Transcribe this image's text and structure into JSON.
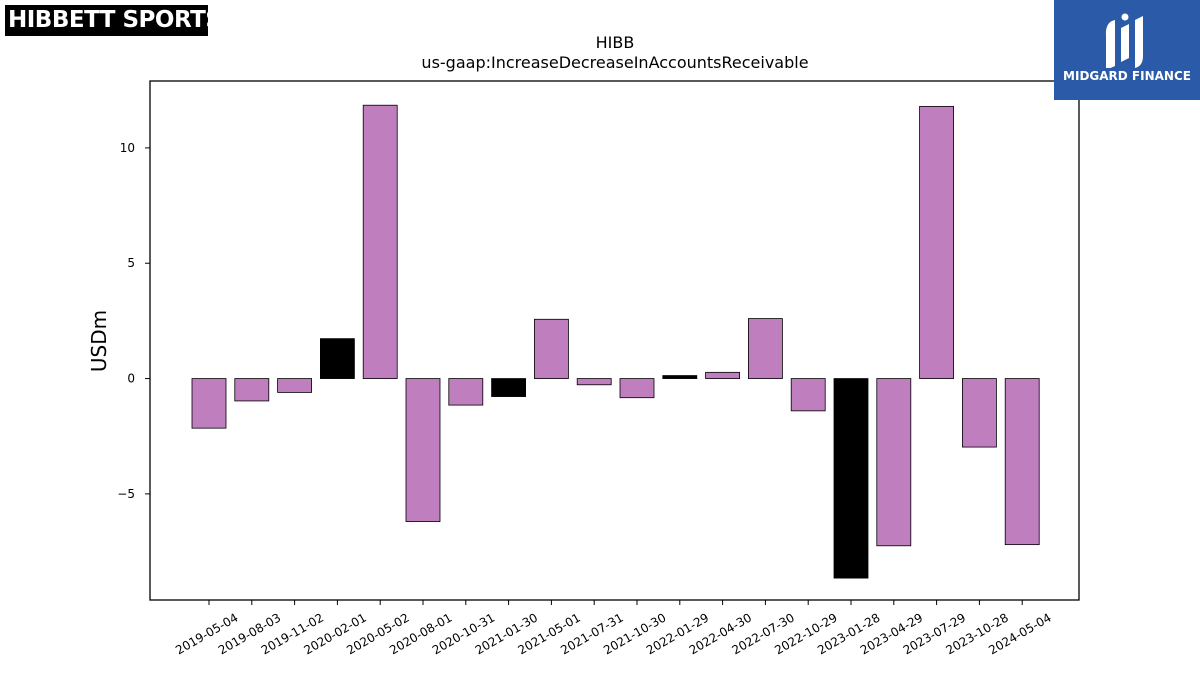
{
  "logos": {
    "left_text": "HIBBETT SPORTS",
    "left_mark": "®",
    "right_text": "MIDGARD FINANCE"
  },
  "colors": {
    "bar_default": "#bf7fbf",
    "bar_highlight": "#000000",
    "edge": "#000000",
    "right_logo_bg": "#2b5aa8"
  },
  "chart_data": {
    "type": "bar",
    "title": "HIBB",
    "subtitle": "us-gaap:IncreaseDecreaseInAccountsReceivable",
    "xlabel": "",
    "ylabel": "USDm",
    "ylim": [
      -9.6,
      12.9
    ],
    "yticks": [
      -5,
      0,
      5,
      10
    ],
    "ytick_labels": [
      "−5",
      "0",
      "5",
      "10"
    ],
    "grid": false,
    "legend": "none",
    "categories": [
      "2019-05-04",
      "2019-08-03",
      "2019-11-02",
      "2020-02-01",
      "2020-05-02",
      "2020-08-01",
      "2020-10-31",
      "2021-01-30",
      "2021-05-01",
      "2021-07-31",
      "2021-10-30",
      "2022-01-29",
      "2022-04-30",
      "2022-07-30",
      "2022-10-29",
      "2023-01-28",
      "2023-04-29",
      "2023-07-29",
      "2023-10-28",
      "2024-05-04"
    ],
    "values": [
      -2.15,
      -0.97,
      -0.6,
      1.73,
      11.85,
      -6.2,
      -1.15,
      -0.78,
      2.57,
      -0.27,
      -0.83,
      0.13,
      0.27,
      2.6,
      -1.4,
      -8.65,
      -7.25,
      11.8,
      -2.97,
      -7.2
    ],
    "highlight": [
      false,
      false,
      false,
      true,
      false,
      false,
      false,
      true,
      false,
      false,
      false,
      true,
      false,
      false,
      false,
      true,
      false,
      false,
      false,
      false
    ]
  }
}
